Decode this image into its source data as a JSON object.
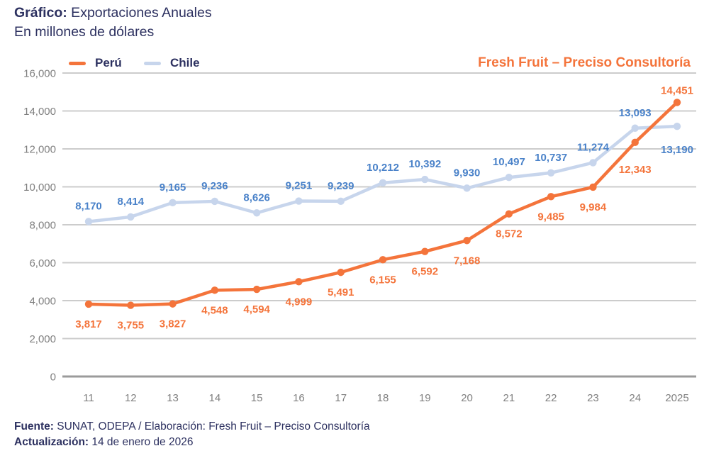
{
  "header": {
    "title_bold": "Gráfico:",
    "title_rest": " Exportaciones Anuales",
    "subtitle": "En millones de dólares",
    "brand": "Fresh Fruit – Preciso Consultoría"
  },
  "legend": [
    {
      "label": "Perú",
      "color": "#f4743b"
    },
    {
      "label": "Chile",
      "color": "#c7d5ec"
    }
  ],
  "chart_data": {
    "type": "line",
    "title": "Exportaciones Anuales",
    "subtitle": "En millones de dólares",
    "categories": [
      "11",
      "12",
      "13",
      "14",
      "15",
      "16",
      "17",
      "18",
      "19",
      "20",
      "21",
      "22",
      "23",
      "24",
      "2025"
    ],
    "series": [
      {
        "name": "Chile",
        "color": "#c7d5ec",
        "label_color": "#4a82c9",
        "values": [
          8170,
          8414,
          9165,
          9236,
          8626,
          9251,
          9239,
          10212,
          10392,
          9930,
          10497,
          10737,
          11274,
          13093,
          13190
        ]
      },
      {
        "name": "Perú",
        "color": "#f4743b",
        "label_color": "#f4743b",
        "values": [
          3817,
          3755,
          3827,
          4548,
          4594,
          4999,
          5491,
          6155,
          6592,
          7168,
          8572,
          9485,
          9984,
          12343,
          14451
        ]
      }
    ],
    "ylim": [
      0,
      16000
    ],
    "ytick_step": 2000,
    "grid": true,
    "legend_position": "top-left",
    "data_labels": true
  },
  "axis": {
    "ytick_labels": [
      "0",
      "2,000",
      "4,000",
      "6,000",
      "8,000",
      "10,000",
      "12,000",
      "14,000",
      "16,000"
    ],
    "tick_color": "#7f7f7f",
    "grid_color": "#cccccc",
    "zero_line_color": "#9b9b9b"
  },
  "footer": {
    "source_bold": "Fuente:",
    "source_rest": " SUNAT, ODEPA / Elaboración: Fresh Fruit – Preciso Consultoría",
    "updated_bold": "Actualización:",
    "updated_rest": " 14 de enero de 2026"
  }
}
